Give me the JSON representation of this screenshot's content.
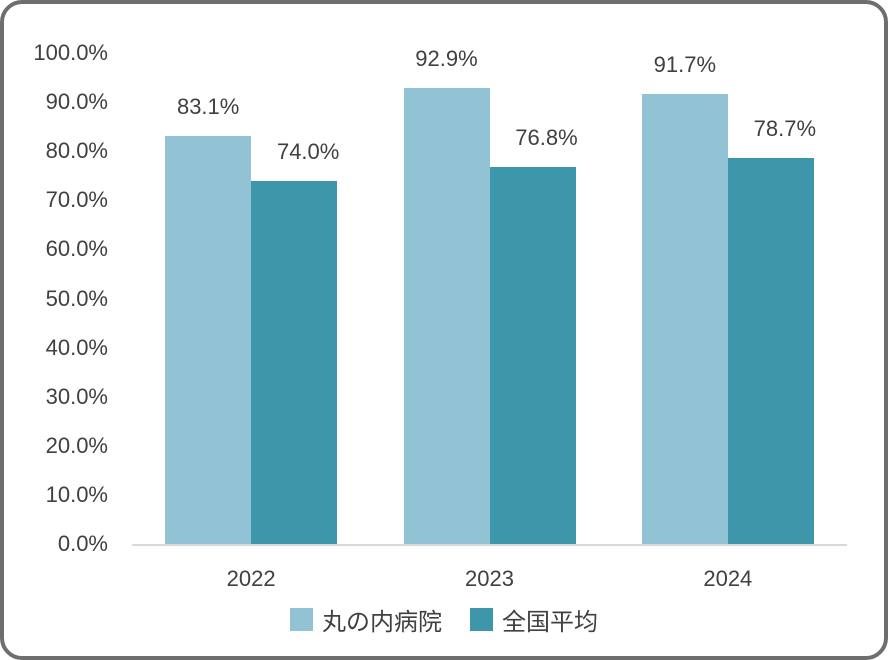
{
  "chart_data": {
    "type": "bar",
    "title": "",
    "categories": [
      "2022",
      "2023",
      "2024"
    ],
    "series": [
      {
        "name": "丸の内病院",
        "color": "#92C3D5",
        "values": [
          83.1,
          92.9,
          91.7
        ],
        "data_labels": [
          "83.1%",
          "92.9%",
          "91.7%"
        ]
      },
      {
        "name": "全国平均",
        "color": "#3E96AB",
        "values": [
          74.0,
          76.8,
          78.7
        ],
        "data_labels": [
          "74.0%",
          "76.8%",
          "78.7%"
        ]
      }
    ],
    "y_axis": {
      "ticks": [
        "100.0%",
        "90.0%",
        "80.0%",
        "70.0%",
        "60.0%",
        "50.0%",
        "40.0%",
        "30.0%",
        "20.0%",
        "10.0%",
        "0.0%"
      ],
      "min": 0,
      "max": 100
    },
    "xlabel": "",
    "ylabel": "",
    "grid": false,
    "legend_position": "bottom"
  },
  "colors": {
    "series_1": "#92C3D5",
    "series_2": "#3E96AB",
    "text": "#404040",
    "axis_line": "#D9D9D9",
    "frame_border": "#6E6E6E",
    "background": "#FFFFFF"
  }
}
